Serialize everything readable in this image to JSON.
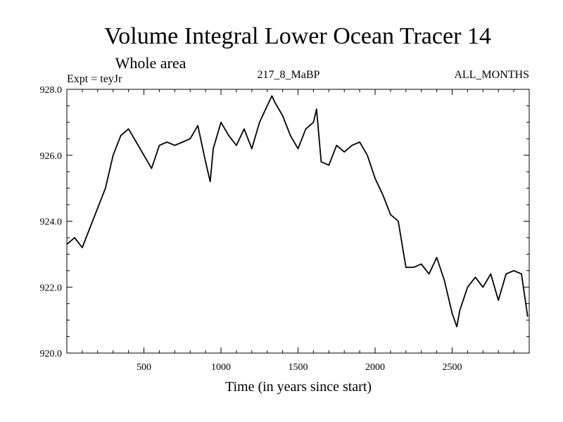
{
  "chart_data": {
    "type": "line",
    "title": "Volume Integral Lower Ocean Tracer 14",
    "subtitle": "Whole area",
    "expt_label": "Expt = teyJr",
    "center_label": "217_8_MaBP",
    "right_label": "ALL_MONTHS",
    "xlabel": "Time (in years since start)",
    "ylabel": "",
    "xlim": [
      0,
      3000
    ],
    "ylim": [
      920.0,
      928.0
    ],
    "x_ticks": [
      500,
      1000,
      1500,
      2000,
      2500
    ],
    "x_tick_labels": [
      "500",
      "1000",
      "1500",
      "2000",
      "2500"
    ],
    "y_ticks": [
      920.0,
      922.0,
      924.0,
      926.0,
      928.0
    ],
    "y_tick_labels": [
      "920.0",
      "922.0",
      "924.0",
      "926.0",
      "928.0"
    ],
    "grid": false,
    "series": [
      {
        "name": "Tracer 14",
        "color": "#000000",
        "x": [
          0,
          50,
          100,
          150,
          200,
          250,
          300,
          350,
          400,
          450,
          500,
          550,
          600,
          650,
          700,
          750,
          800,
          850,
          900,
          930,
          950,
          1000,
          1050,
          1100,
          1150,
          1200,
          1250,
          1300,
          1330,
          1350,
          1400,
          1450,
          1500,
          1550,
          1600,
          1620,
          1650,
          1700,
          1750,
          1800,
          1850,
          1900,
          1950,
          2000,
          2050,
          2100,
          2150,
          2200,
          2250,
          2300,
          2350,
          2400,
          2450,
          2500,
          2530,
          2550,
          2600,
          2650,
          2700,
          2750,
          2800,
          2850,
          2900,
          2950,
          2990
        ],
        "values": [
          923.3,
          923.5,
          923.2,
          923.8,
          924.4,
          925.0,
          926.0,
          926.6,
          926.8,
          926.4,
          926.0,
          925.6,
          926.3,
          926.4,
          926.3,
          926.4,
          926.5,
          926.9,
          925.8,
          925.2,
          926.2,
          927.0,
          926.6,
          926.3,
          926.8,
          926.2,
          927.0,
          927.5,
          927.8,
          927.6,
          927.2,
          926.6,
          926.2,
          926.8,
          927.0,
          927.4,
          925.8,
          925.7,
          926.3,
          926.1,
          926.3,
          926.4,
          926.0,
          925.3,
          924.8,
          924.2,
          924.0,
          922.6,
          922.6,
          922.7,
          922.4,
          922.9,
          922.2,
          921.2,
          920.8,
          921.3,
          922.0,
          922.3,
          922.0,
          922.4,
          921.6,
          922.4,
          922.5,
          922.4,
          921.1
        ]
      }
    ]
  }
}
